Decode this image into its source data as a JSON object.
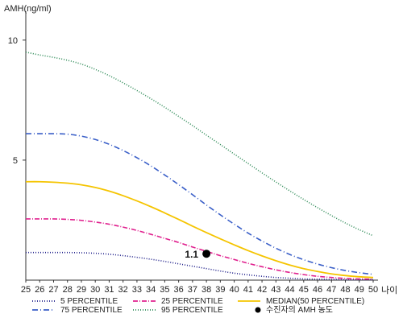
{
  "chart_data": {
    "type": "line",
    "ylabel": "AMH(ng/ml)",
    "xlabel": "나이",
    "xlim": [
      25,
      50
    ],
    "ylim": [
      0,
      11
    ],
    "yticks": [
      5,
      10
    ],
    "x": [
      25,
      26,
      27,
      28,
      29,
      30,
      31,
      32,
      33,
      34,
      35,
      36,
      37,
      38,
      39,
      40,
      41,
      42,
      43,
      44,
      45,
      46,
      47,
      48,
      49,
      50
    ],
    "grid": false,
    "legend_position": "bottom",
    "series": [
      {
        "name": "5 PERCENTILE",
        "color": "#1f1f8a",
        "dash": "1,2",
        "values": [
          1.15,
          1.15,
          1.15,
          1.15,
          1.14,
          1.12,
          1.08,
          1.02,
          0.95,
          0.87,
          0.78,
          0.68,
          0.58,
          0.48,
          0.38,
          0.29,
          0.22,
          0.16,
          0.11,
          0.08,
          0.05,
          0.04,
          0.03,
          0.02,
          0.02,
          0.02
        ]
      },
      {
        "name": "25 PERCENTILE",
        "color": "#e0208e",
        "dash": "6,2,1,2",
        "values": [
          2.55,
          2.55,
          2.55,
          2.53,
          2.49,
          2.42,
          2.33,
          2.21,
          2.07,
          1.91,
          1.74,
          1.57,
          1.38,
          1.2,
          1.02,
          0.86,
          0.7,
          0.56,
          0.43,
          0.32,
          0.23,
          0.16,
          0.11,
          0.07,
          0.05,
          0.04
        ]
      },
      {
        "name": "MEDIAN(50 PERCENTILE)",
        "color": "#f5c400",
        "dash": "",
        "values": [
          4.1,
          4.1,
          4.08,
          4.04,
          3.97,
          3.86,
          3.71,
          3.52,
          3.3,
          3.06,
          2.8,
          2.53,
          2.25,
          1.98,
          1.72,
          1.47,
          1.23,
          1.01,
          0.81,
          0.63,
          0.48,
          0.36,
          0.26,
          0.19,
          0.14,
          0.11
        ]
      },
      {
        "name": "75 PERCENTILE",
        "color": "#3a5fc8",
        "dash": "7,3,1,3",
        "values": [
          6.1,
          6.1,
          6.1,
          6.08,
          6.0,
          5.86,
          5.66,
          5.4,
          5.1,
          4.76,
          4.38,
          3.98,
          3.56,
          3.13,
          2.72,
          2.33,
          1.96,
          1.63,
          1.33,
          1.07,
          0.85,
          0.67,
          0.52,
          0.4,
          0.31,
          0.24
        ]
      },
      {
        "name": "95 PERCENTILE",
        "color": "#2e8b57",
        "dash": "1,2",
        "values": [
          9.5,
          9.38,
          9.28,
          9.16,
          9.0,
          8.78,
          8.52,
          8.22,
          7.9,
          7.56,
          7.2,
          6.82,
          6.44,
          6.04,
          5.65,
          5.25,
          4.86,
          4.47,
          4.09,
          3.72,
          3.36,
          3.02,
          2.69,
          2.38,
          2.1,
          1.85
        ]
      }
    ],
    "marker": {
      "name": "수진자의 AMH 농도",
      "x": 38,
      "y": 1.1,
      "label": "1.1",
      "color": "#000000"
    },
    "legend_order": [
      "5 PERCENTILE",
      "25 PERCENTILE",
      "MEDIAN(50 PERCENTILE)",
      "75 PERCENTILE",
      "95 PERCENTILE",
      "수진자의 AMH 농도"
    ]
  }
}
